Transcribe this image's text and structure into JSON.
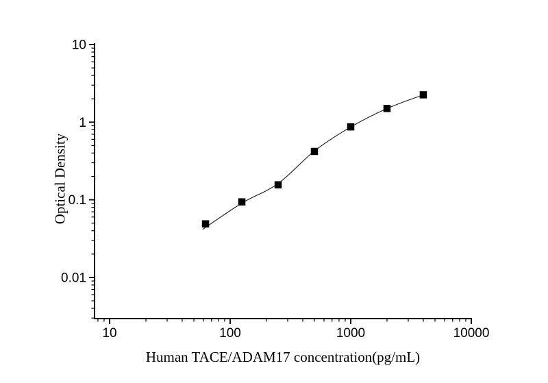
{
  "chart_data": {
    "type": "scatter",
    "title": "",
    "xlabel": "Human TACE/ADAM17 concentration(pg/mL)",
    "ylabel": "Optical Density",
    "x_scale": "log",
    "y_scale": "log",
    "xlim": [
      7.5,
      10000
    ],
    "ylim": [
      0.00295,
      10
    ],
    "x_major_ticks": [
      10,
      100,
      1000,
      10000
    ],
    "x_tick_labels": [
      "10",
      "100",
      "1000",
      "10000"
    ],
    "y_major_ticks": [
      10,
      1,
      0.1,
      0.01
    ],
    "y_tick_labels": [
      "10",
      "1",
      "0.1",
      "0.01"
    ],
    "grid": false,
    "legend": null,
    "axis_color": "#000000",
    "marker": "filled-square",
    "marker_color": "#000000",
    "line_color": "#1a1a1a",
    "series": [
      {
        "name": "standard-curve-points",
        "x": [
          62.5,
          125,
          250,
          500,
          1000,
          2000,
          4000
        ],
        "y": [
          0.049,
          0.094,
          0.156,
          0.42,
          0.87,
          1.5,
          2.25
        ]
      }
    ],
    "fit_curve": {
      "name": "fitted-curve",
      "x": [
        59,
        125,
        250,
        500,
        1000,
        2000,
        4000
      ],
      "y": [
        0.0415,
        0.0905,
        0.162,
        0.425,
        0.865,
        1.5,
        2.25
      ]
    }
  }
}
